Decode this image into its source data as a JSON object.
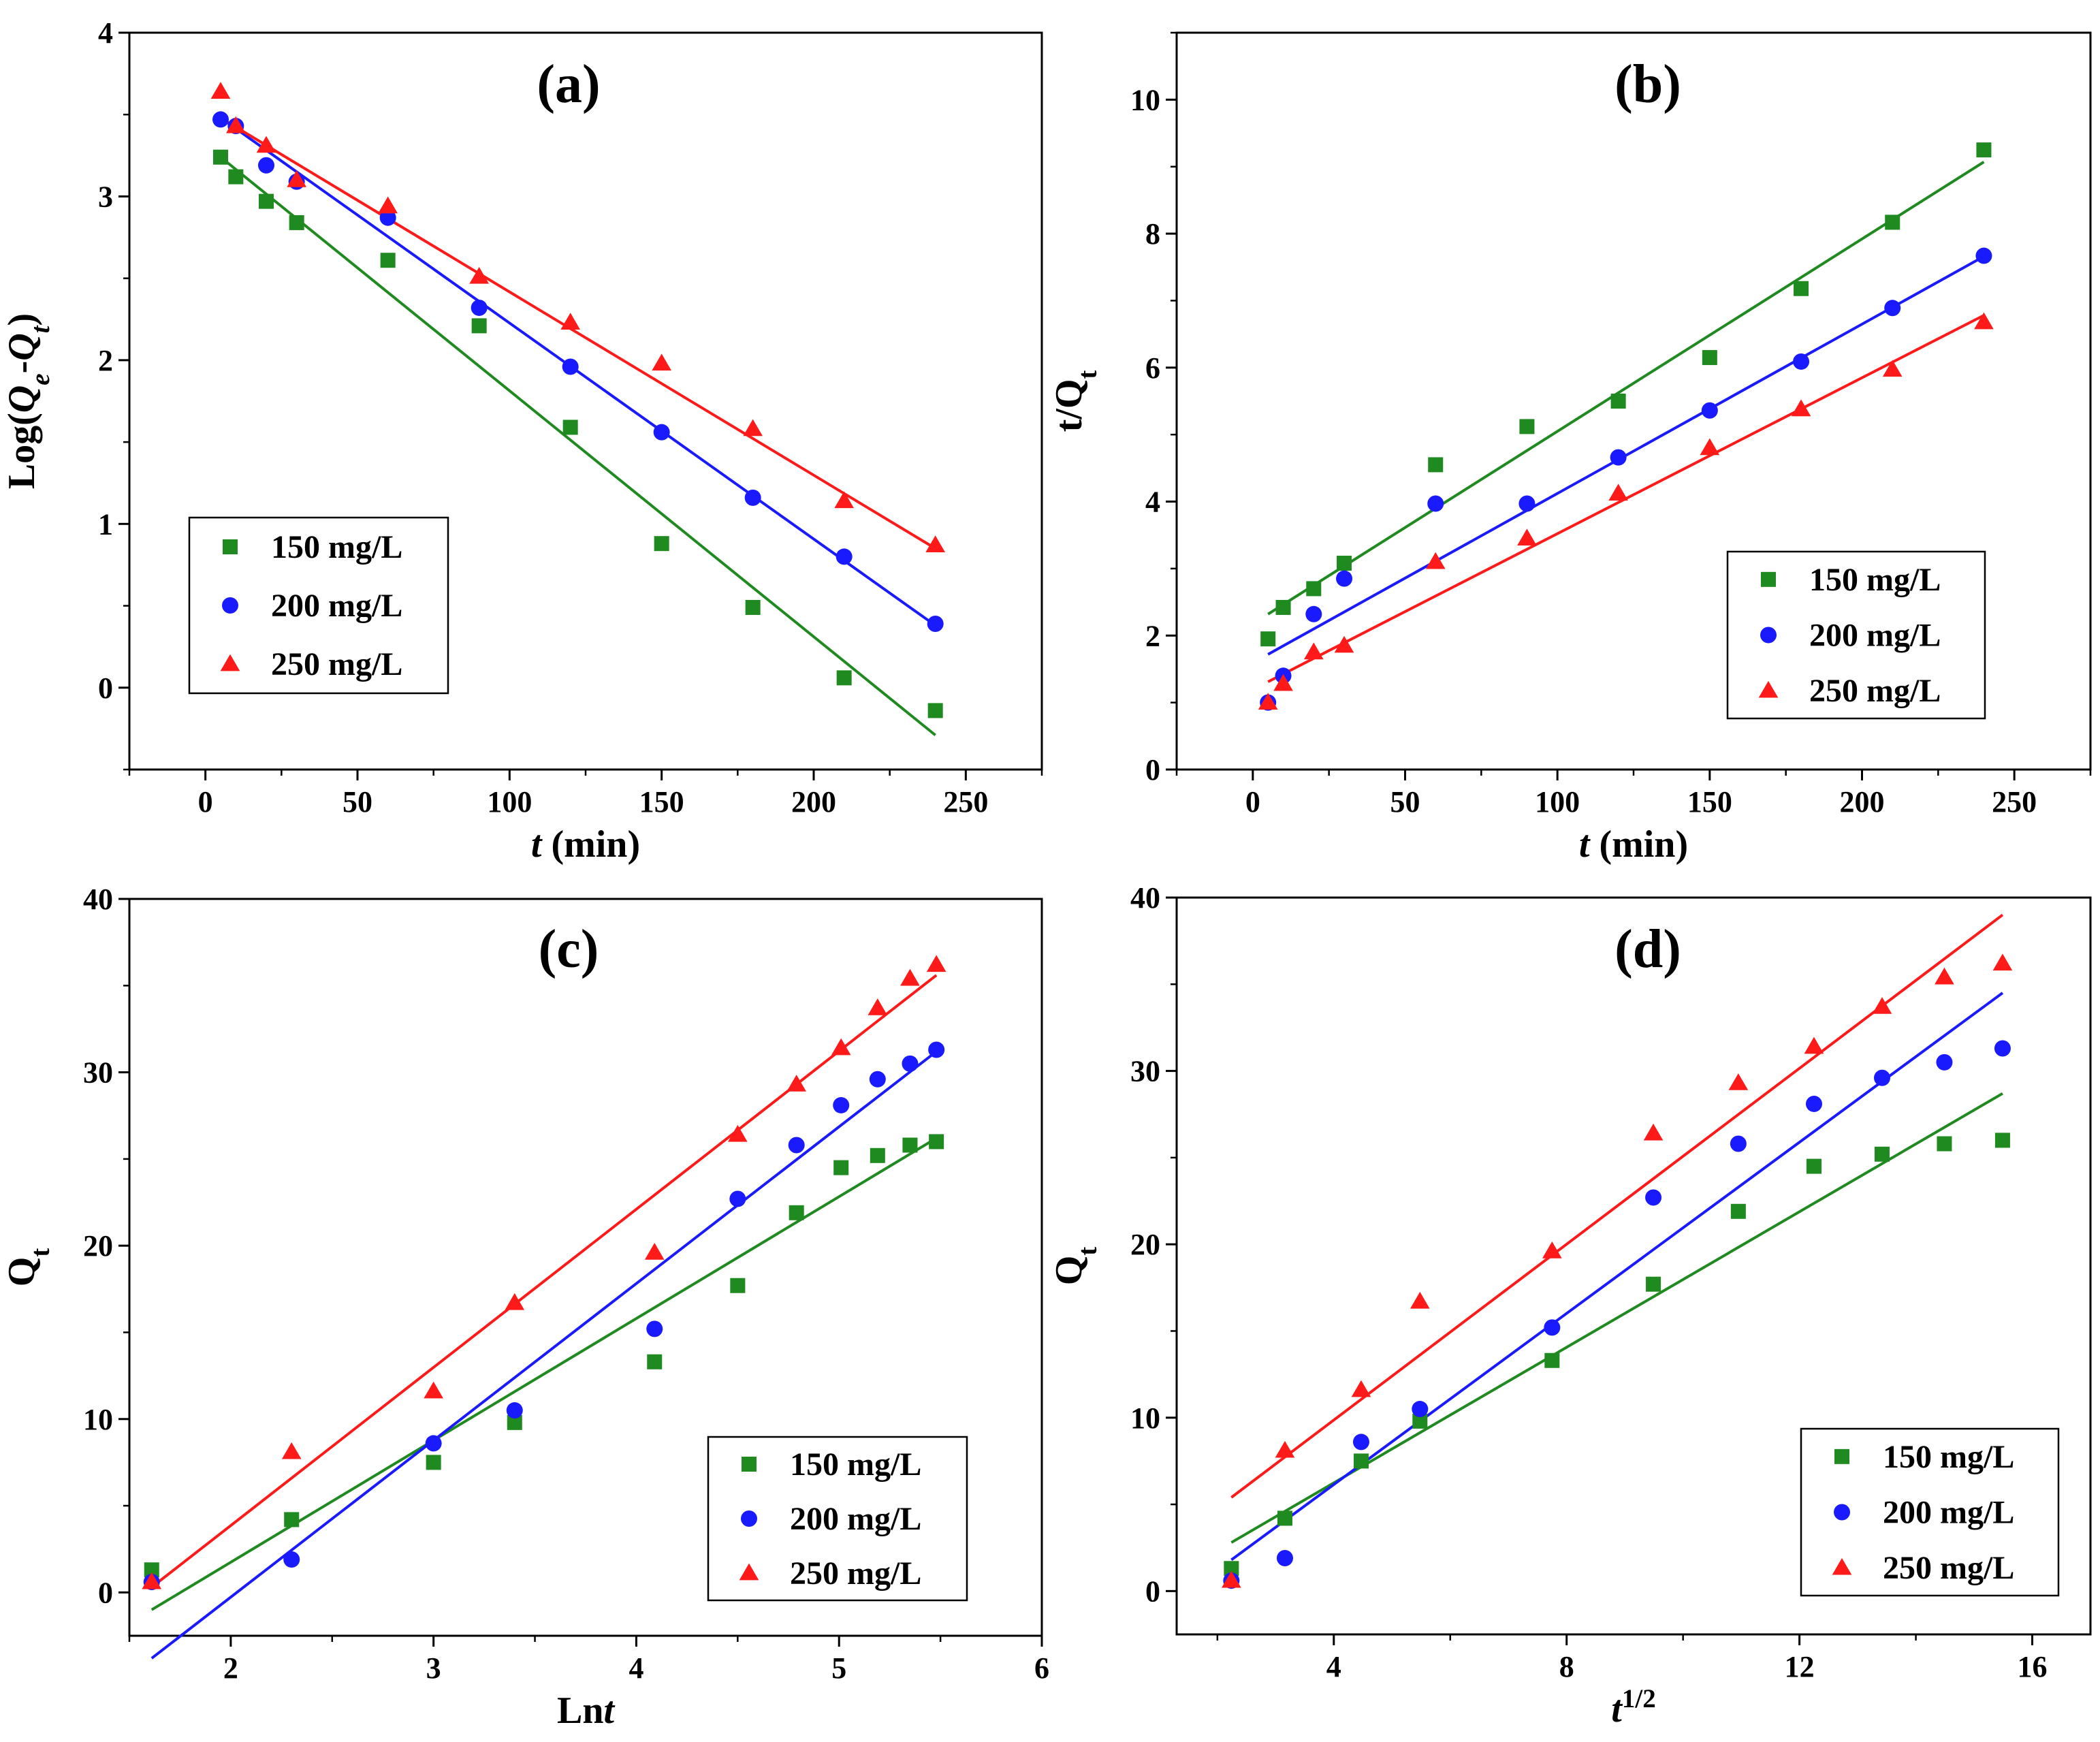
{
  "chart_data": [
    {
      "type": "scatter",
      "title": "(a)",
      "xlabel": {
        "parts": [
          {
            "text": "t",
            "style": "italic"
          },
          {
            "text": " (min)",
            "style": "normal"
          }
        ]
      },
      "ylabel": {
        "parts": [
          {
            "text": "Log(",
            "style": "normal"
          },
          {
            "text": "Q",
            "style": "italic"
          },
          {
            "text": "e",
            "style": "italic-sub"
          },
          {
            "text": "-",
            "style": "normal"
          },
          {
            "text": "Q",
            "style": "italic"
          },
          {
            "text": "t",
            "style": "italic-sub"
          },
          {
            "text": ")",
            "style": "normal"
          }
        ]
      },
      "xlim": [
        -25,
        275
      ],
      "ylim": [
        -0.5,
        4
      ],
      "xticks": [
        0,
        50,
        100,
        150,
        200,
        250
      ],
      "xtick_labels": [
        "0",
        "50",
        "100",
        "150",
        "200",
        "250"
      ],
      "yticks": [
        0,
        1,
        2,
        3,
        4
      ],
      "ytick_labels": [
        "0",
        "1",
        "2",
        "3",
        "4"
      ],
      "legend_position": "bottom-left",
      "series": [
        {
          "name": "150 mg/L",
          "color": "#1f8a1f",
          "marker": "square",
          "x": [
            5,
            10,
            20,
            30,
            60,
            90,
            120,
            150,
            180,
            210,
            240
          ],
          "y": [
            3.24,
            3.12,
            2.97,
            2.84,
            2.61,
            2.21,
            1.59,
            0.88,
            0.49,
            0.06,
            -0.14
          ],
          "fit": [
            [
              5,
              3.24
            ],
            [
              240,
              -0.29
            ]
          ]
        },
        {
          "name": "200 mg/L",
          "color": "#1a1aff",
          "marker": "circle",
          "x": [
            5,
            10,
            20,
            30,
            60,
            90,
            120,
            150,
            180,
            210,
            240
          ],
          "y": [
            3.47,
            3.43,
            3.19,
            3.09,
            2.87,
            2.32,
            1.96,
            1.56,
            1.16,
            0.8,
            0.39
          ],
          "fit": [
            [
              5,
              3.48
            ],
            [
              240,
              0.38
            ]
          ]
        },
        {
          "name": "250 mg/L",
          "color": "#ff1a1a",
          "marker": "triangle",
          "x": [
            5,
            10,
            20,
            30,
            60,
            90,
            120,
            150,
            180,
            210,
            240
          ],
          "y": [
            3.64,
            3.43,
            3.31,
            3.1,
            2.94,
            2.51,
            2.23,
            1.98,
            1.58,
            1.14,
            0.87
          ],
          "fit": [
            [
              5,
              3.48
            ],
            [
              240,
              0.85
            ]
          ]
        }
      ]
    },
    {
      "type": "scatter",
      "title": "(b)",
      "xlabel": {
        "parts": [
          {
            "text": "t",
            "style": "italic"
          },
          {
            "text": " (min)",
            "style": "normal"
          }
        ]
      },
      "ylabel": {
        "parts": [
          {
            "text": "t/Q",
            "style": "normal"
          },
          {
            "text": "t",
            "style": "sub"
          }
        ]
      },
      "xlim": [
        -25,
        275
      ],
      "ylim": [
        0,
        11
      ],
      "xticks": [
        0,
        50,
        100,
        150,
        200,
        250
      ],
      "xtick_labels": [
        "0",
        "50",
        "100",
        "150",
        "200",
        "250"
      ],
      "yticks": [
        0,
        2,
        4,
        6,
        8,
        10
      ],
      "ytick_labels": [
        "0",
        "2",
        "4",
        "6",
        "8",
        "10"
      ],
      "legend_position": "bottom-right",
      "series": [
        {
          "name": "150 mg/L",
          "color": "#1f8a1f",
          "marker": "square",
          "x": [
            5,
            10,
            20,
            30,
            60,
            90,
            120,
            150,
            180,
            210,
            240
          ],
          "y": [
            1.95,
            2.42,
            2.7,
            3.08,
            4.55,
            5.12,
            5.5,
            6.15,
            7.18,
            8.17,
            9.25
          ],
          "fit": [
            [
              5,
              2.32
            ],
            [
              240,
              9.07
            ]
          ]
        },
        {
          "name": "200 mg/L",
          "color": "#1a1aff",
          "marker": "circle",
          "x": [
            5,
            10,
            20,
            30,
            60,
            90,
            120,
            150,
            180,
            210,
            240
          ],
          "y": [
            1.0,
            1.4,
            2.32,
            2.85,
            3.97,
            3.97,
            4.66,
            5.36,
            6.09,
            6.89,
            7.67
          ],
          "fit": [
            [
              5,
              1.72
            ],
            [
              240,
              7.66
            ]
          ]
        },
        {
          "name": "250 mg/L",
          "color": "#ff1a1a",
          "marker": "triangle",
          "x": [
            5,
            10,
            20,
            30,
            60,
            90,
            120,
            150,
            180,
            210,
            240
          ],
          "y": [
            1.0,
            1.28,
            1.75,
            1.85,
            3.1,
            3.45,
            4.12,
            4.8,
            5.38,
            5.97,
            6.68
          ],
          "fit": [
            [
              5,
              1.31
            ],
            [
              240,
              6.78
            ]
          ]
        }
      ]
    },
    {
      "type": "scatter",
      "title": "(c)",
      "xlabel": {
        "parts": [
          {
            "text": "Ln",
            "style": "normal"
          },
          {
            "text": "t",
            "style": "italic"
          }
        ]
      },
      "ylabel": {
        "parts": [
          {
            "text": "Q",
            "style": "normal"
          },
          {
            "text": "t",
            "style": "sub"
          }
        ]
      },
      "xlim": [
        1.5,
        6
      ],
      "ylim": [
        -2.5,
        40
      ],
      "xticks": [
        2,
        3,
        4,
        5,
        6
      ],
      "xtick_labels": [
        "2",
        "3",
        "4",
        "5",
        "6"
      ],
      "yticks": [
        0,
        10,
        20,
        30,
        40
      ],
      "ytick_labels": [
        "0",
        "10",
        "20",
        "30",
        "40"
      ],
      "legend_position": "bottom-right",
      "series": [
        {
          "name": "150 mg/L",
          "color": "#1f8a1f",
          "marker": "square",
          "x": [
            1.61,
            2.3,
            3.0,
            3.4,
            4.09,
            4.5,
            4.79,
            5.01,
            5.19,
            5.35,
            5.48
          ],
          "y": [
            1.3,
            4.2,
            7.5,
            9.8,
            13.3,
            17.7,
            21.9,
            24.5,
            25.2,
            25.8,
            26.0
          ],
          "fit": [
            [
              1.61,
              -1.0
            ],
            [
              5.48,
              26.2
            ]
          ]
        },
        {
          "name": "200 mg/L",
          "color": "#1a1aff",
          "marker": "circle",
          "x": [
            1.61,
            2.3,
            3.0,
            3.4,
            4.09,
            4.5,
            4.79,
            5.01,
            5.19,
            5.35,
            5.48
          ],
          "y": [
            0.6,
            1.9,
            8.6,
            10.5,
            15.2,
            22.7,
            25.8,
            28.1,
            29.6,
            30.5,
            31.3
          ],
          "fit": [
            [
              1.61,
              -3.8
            ],
            [
              5.48,
              31.2
            ]
          ]
        },
        {
          "name": "250 mg/L",
          "color": "#ff1a1a",
          "marker": "triangle",
          "x": [
            1.61,
            2.3,
            3.0,
            3.4,
            4.09,
            4.5,
            4.79,
            5.01,
            5.19,
            5.35,
            5.48
          ],
          "y": [
            0.6,
            8.1,
            11.6,
            16.7,
            19.6,
            26.4,
            29.3,
            31.4,
            33.7,
            35.4,
            36.2
          ],
          "fit": [
            [
              1.61,
              0.3
            ],
            [
              5.48,
              35.6
            ]
          ]
        }
      ]
    },
    {
      "type": "scatter",
      "title": "(d)",
      "xlabel": {
        "parts": [
          {
            "text": "t",
            "style": "italic"
          },
          {
            "text": "1/2",
            "style": "sup"
          }
        ]
      },
      "ylabel": {
        "parts": [
          {
            "text": "Q",
            "style": "normal"
          },
          {
            "text": "t",
            "style": "sub"
          }
        ]
      },
      "xlim": [
        1.3,
        17
      ],
      "ylim": [
        -2.5,
        40
      ],
      "xticks": [
        4,
        8,
        12,
        16
      ],
      "xtick_labels": [
        "4",
        "8",
        "12",
        "16"
      ],
      "yticks": [
        0,
        10,
        20,
        30,
        40
      ],
      "ytick_labels": [
        "0",
        "10",
        "20",
        "30",
        "40"
      ],
      "legend_position": "bottom-right",
      "series": [
        {
          "name": "150 mg/L",
          "color": "#1f8a1f",
          "marker": "square",
          "x": [
            2.24,
            3.16,
            4.47,
            5.48,
            7.75,
            9.49,
            10.95,
            12.25,
            13.42,
            14.49,
            15.49
          ],
          "y": [
            1.3,
            4.2,
            7.5,
            9.8,
            13.3,
            17.7,
            21.9,
            24.5,
            25.2,
            25.8,
            26.0
          ],
          "fit": [
            [
              2.24,
              2.8
            ],
            [
              15.49,
              28.7
            ]
          ]
        },
        {
          "name": "200 mg/L",
          "color": "#1a1aff",
          "marker": "circle",
          "x": [
            2.24,
            3.16,
            4.47,
            5.48,
            7.75,
            9.49,
            10.95,
            12.25,
            13.42,
            14.49,
            15.49
          ],
          "y": [
            0.6,
            1.9,
            8.6,
            10.5,
            15.2,
            22.7,
            25.8,
            28.1,
            29.6,
            30.5,
            31.3
          ],
          "fit": [
            [
              2.24,
              1.8
            ],
            [
              15.49,
              34.5
            ]
          ]
        },
        {
          "name": "250 mg/L",
          "color": "#ff1a1a",
          "marker": "triangle",
          "x": [
            2.24,
            3.16,
            4.47,
            5.48,
            7.75,
            9.49,
            10.95,
            12.25,
            13.42,
            14.49,
            15.49
          ],
          "y": [
            0.6,
            8.1,
            11.6,
            16.7,
            19.6,
            26.4,
            29.3,
            31.4,
            33.7,
            35.4,
            36.2
          ],
          "fit": [
            [
              2.24,
              5.4
            ],
            [
              15.49,
              39.0
            ]
          ]
        }
      ]
    }
  ]
}
